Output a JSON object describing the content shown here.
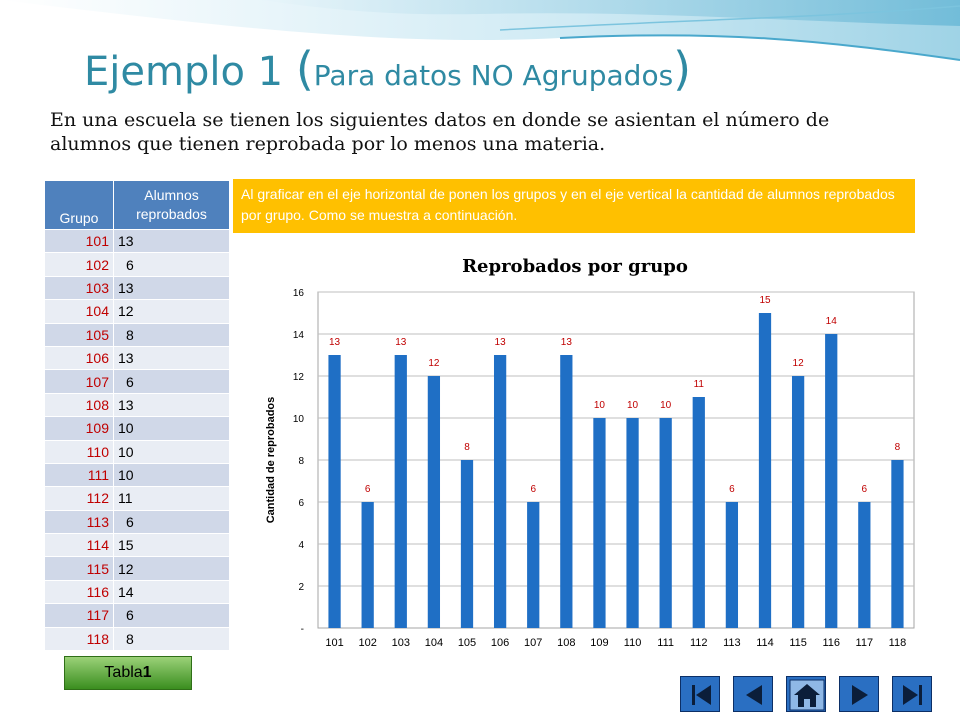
{
  "title": {
    "main": "Ejemplo 1 ",
    "paren_open": "(",
    "sub": "Para datos NO Agrupados",
    "paren_close": ")"
  },
  "intro": "En una escuela se tienen los siguientes datos en donde se asientan el número de alumnos que tienen reprobada por lo menos una materia.",
  "note": "Al graficar en el eje horizontal de ponen los grupos y en el eje vertical la cantidad de alumnos reprobados por grupo. Como se muestra a continuación.",
  "table": {
    "header_group": "Grupo",
    "header_count": "Alumnos reprobados",
    "rows": [
      {
        "g": "101",
        "v": "13"
      },
      {
        "g": "102",
        "v": "6"
      },
      {
        "g": "103",
        "v": "13"
      },
      {
        "g": "104",
        "v": "12"
      },
      {
        "g": "105",
        "v": "8"
      },
      {
        "g": "106",
        "v": "13"
      },
      {
        "g": "107",
        "v": "6"
      },
      {
        "g": "108",
        "v": "13"
      },
      {
        "g": "109",
        "v": "10"
      },
      {
        "g": "110",
        "v": "10"
      },
      {
        "g": "111",
        "v": "10"
      },
      {
        "g": "112",
        "v": "11"
      },
      {
        "g": "113",
        "v": "6"
      },
      {
        "g": "114",
        "v": "15"
      },
      {
        "g": "115",
        "v": "12"
      },
      {
        "g": "116",
        "v": "14"
      },
      {
        "g": "117",
        "v": "6"
      },
      {
        "g": "118",
        "v": "8"
      }
    ]
  },
  "table_button": {
    "prefix": "Tabla ",
    "number": "1"
  },
  "nav": {
    "icons": [
      "first-slide-icon",
      "previous-slide-icon",
      "home-icon",
      "next-slide-icon",
      "last-slide-icon"
    ]
  },
  "colors": {
    "bar": "#1f6fc5",
    "data_label": "#c00000",
    "title": "#2f8aa3",
    "note_bg": "#ffc000",
    "table_header": "#4f81bd"
  },
  "chart_data": {
    "type": "bar",
    "title": "Reprobados por grupo",
    "xlabel": "",
    "ylabel": "Cantidad de reprobados",
    "categories": [
      "101",
      "102",
      "103",
      "104",
      "105",
      "106",
      "107",
      "108",
      "109",
      "110",
      "111",
      "112",
      "113",
      "114",
      "115",
      "116",
      "117",
      "118"
    ],
    "values": [
      13,
      6,
      13,
      12,
      8,
      13,
      6,
      13,
      10,
      10,
      10,
      11,
      6,
      15,
      12,
      14,
      6,
      8
    ],
    "ylim": [
      0,
      16
    ],
    "yticks": [
      0,
      2,
      4,
      6,
      8,
      10,
      12,
      14,
      16
    ],
    "ytick_labels": [
      "-",
      "2",
      "4",
      "6",
      "8",
      "10",
      "12",
      "14",
      "16"
    ],
    "data_labels": true,
    "grid": true,
    "legend": "none"
  }
}
